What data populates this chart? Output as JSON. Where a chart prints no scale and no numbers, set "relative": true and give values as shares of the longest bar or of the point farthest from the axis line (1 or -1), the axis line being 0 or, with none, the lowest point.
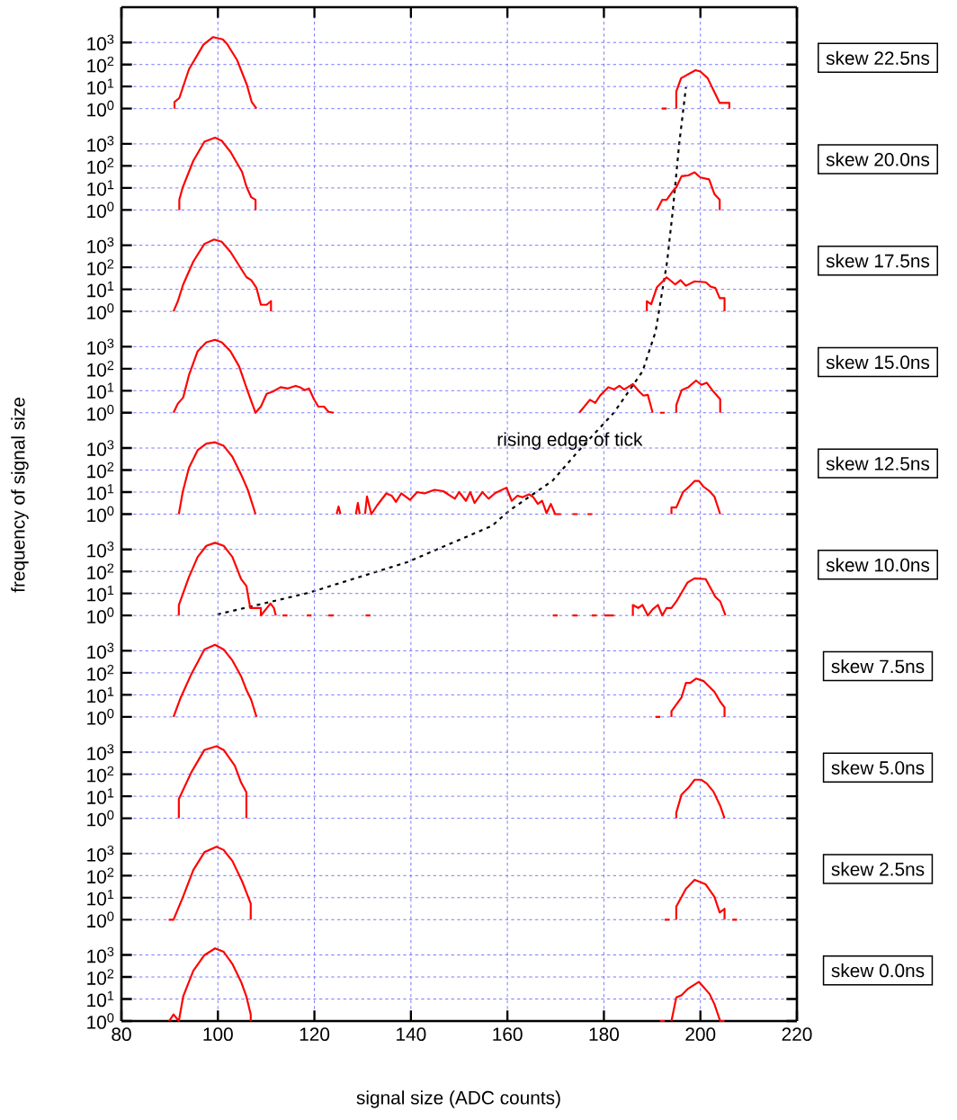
{
  "chart_data": [
    {
      "type": "line",
      "annotations": [
        "skew 22.5ns"
      ],
      "xlim": [
        80,
        220
      ],
      "xticks": [
        80,
        100,
        120,
        140,
        160,
        180,
        200,
        220
      ],
      "ylim": [
        1,
        40000
      ],
      "yticks": [
        {
          "value": 1,
          "label": "10$^{0}$"
        },
        {
          "value": 10,
          "label": "10$^{1}$"
        },
        {
          "value": 100,
          "label": "10$^{2}$"
        },
        {
          "value": 1000,
          "label": "10$^{3}$"
        }
      ],
      "log": true,
      "grid": true,
      "tick_labels": "y",
      "series": [
        {
          "color": "#ff0000",
          "x": [
            91,
            91,
            92,
            94,
            97,
            99,
            101,
            102,
            104,
            106,
            107,
            108,
            null,
            192,
            193,
            null,
            195,
            195,
            196,
            199,
            200,
            201.5,
            204,
            206,
            206
          ],
          "values": [
            1,
            2,
            3,
            61,
            800,
            1760,
            1390,
            800,
            155,
            12,
            2,
            1,
            null,
            1,
            1,
            null,
            1,
            6,
            24,
            55,
            48,
            24,
            1.8,
            1.8,
            1
          ]
        }
      ]
    },
    {
      "type": "line",
      "annotations": [
        "skew 20.0ns"
      ],
      "xlim": [
        80,
        220
      ],
      "xticks": [
        80,
        100,
        120,
        140,
        160,
        180,
        200,
        220
      ],
      "ylim": [
        1,
        40000
      ],
      "yticks": [
        {
          "value": 1,
          "label": "10$^{0}$"
        },
        {
          "value": 10,
          "label": "10$^{1}$"
        },
        {
          "value": 100,
          "label": "10$^{2}$"
        },
        {
          "value": 1000,
          "label": "10$^{3}$"
        }
      ],
      "log": true,
      "grid": true,
      "tick_labels": "y",
      "series": [
        {
          "color": "#ff0000",
          "x": [
            92,
            92,
            92.7,
            94.9,
            97.2,
            99.4,
            100.8,
            102.6,
            105,
            105.9,
            106.9,
            107.8,
            107.8,
            null,
            191,
            192.1,
            193,
            194.3,
            195,
            196.1,
            197.5,
            198.8,
            200,
            201.8,
            202.9,
            204,
            204
          ],
          "values": [
            1,
            2.9,
            10.6,
            170,
            1260,
            1900,
            1380,
            435,
            54,
            11.7,
            3.8,
            2.9,
            1,
            null,
            1,
            2.9,
            2.9,
            7.3,
            10.6,
            34,
            37,
            51,
            30,
            24.5,
            5.3,
            2.9,
            1
          ]
        }
      ]
    },
    {
      "type": "line",
      "annotations": [
        "skew 17.5ns"
      ],
      "xlim": [
        80,
        220
      ],
      "xticks": [
        80,
        100,
        120,
        140,
        160,
        180,
        200,
        220
      ],
      "ylim": [
        1,
        40000
      ],
      "yticks": [
        {
          "value": 1,
          "label": "10$^{0}$"
        },
        {
          "value": 10,
          "label": "10$^{1}$"
        },
        {
          "value": 100,
          "label": "10$^{2}$"
        },
        {
          "value": 1000,
          "label": "10$^{3}$"
        }
      ],
      "log": true,
      "grid": true,
      "tick_labels": "y",
      "series": [
        {
          "color": "#ff0000",
          "x": [
            90.8,
            91.7,
            92.8,
            94.9,
            97.2,
            99.2,
            100.8,
            102.6,
            105.9,
            106.9,
            108,
            108.9,
            110.1,
            111,
            111,
            null,
            188.9,
            188.9,
            189.8,
            191,
            193,
            194.8,
            195.9,
            197,
            198.8,
            201.1,
            202.2,
            203.1,
            204,
            205,
            205
          ],
          "values": [
            1,
            2.9,
            16.6,
            182,
            1150,
            1820,
            1445,
            500,
            36,
            26,
            11.5,
            2,
            2,
            2.9,
            1,
            null,
            1,
            2.9,
            2.1,
            12.6,
            35,
            16.6,
            26,
            14.5,
            23,
            21,
            13,
            11.5,
            4,
            4,
            1
          ]
        }
      ]
    },
    {
      "type": "line",
      "annotations": [
        "skew 15.0ns"
      ],
      "xlim": [
        80,
        220
      ],
      "xticks": [
        80,
        100,
        120,
        140,
        160,
        180,
        200,
        220
      ],
      "ylim": [
        1,
        40000
      ],
      "yticks": [
        {
          "value": 1,
          "label": "10$^{0}$"
        },
        {
          "value": 10,
          "label": "10$^{1}$"
        },
        {
          "value": 100,
          "label": "10$^{2}$"
        },
        {
          "value": 1000,
          "label": "10$^{3}$"
        }
      ],
      "log": true,
      "grid": true,
      "tick_labels": "y",
      "series": [
        {
          "color": "#ff0000",
          "x": [
            90.8,
            91.7,
            92.8,
            94,
            95.8,
            97.6,
            99.4,
            100.8,
            102.6,
            104.4,
            106.2,
            107.8,
            108.9,
            110.1,
            111.4,
            113,
            114.5,
            116.1,
            117,
            118,
            118.9,
            119.9,
            120.8,
            122,
            122.9,
            124,
            null,
            174.9,
            177.1,
            178.2,
            179.2,
            180.9,
            182.1,
            183.2,
            184.2,
            186,
            187.3,
            188.2,
            189.1,
            190.1,
            null,
            191.6,
            192.6,
            null,
            195,
            195,
            196.1,
            197.5,
            199.1,
            200.2,
            201.3,
            202.7,
            204.1,
            204.1
          ],
          "values": [
            1,
            2.6,
            4.9,
            51,
            620,
            1580,
            2030,
            1580,
            620,
            126,
            9.1,
            1,
            1.9,
            7.2,
            9.1,
            14.4,
            12.6,
            16.6,
            14.4,
            10.5,
            12.6,
            4.1,
            1.9,
            1.9,
            1.1,
            1,
            null,
            1,
            3.9,
            2.8,
            6,
            14.4,
            11.5,
            16.6,
            11.5,
            20,
            9.1,
            6,
            6.5,
            1,
            null,
            1,
            1,
            null,
            1,
            2.2,
            10.5,
            14.4,
            29,
            18.5,
            23,
            9.1,
            4.1,
            1
          ]
        }
      ]
    },
    {
      "type": "line",
      "annotations": [
        "skew 12.5ns"
      ],
      "ylabel": "frequency of signal size",
      "xlim": [
        80,
        220
      ],
      "xticks": [
        80,
        100,
        120,
        140,
        160,
        180,
        200,
        220
      ],
      "ylim": [
        1,
        40000
      ],
      "yticks": [
        {
          "value": 1,
          "label": "10$^{0}$"
        },
        {
          "value": 10,
          "label": "10$^{1}$"
        },
        {
          "value": 100,
          "label": "10$^{2}$"
        },
        {
          "value": 1000,
          "label": "10$^{3}$"
        }
      ],
      "log": true,
      "grid": true,
      "tick_labels": "y",
      "series": [
        {
          "color": "#ff0000",
          "x": [
            91.9,
            92.7,
            94,
            95.8,
            97.6,
            99.4,
            101.2,
            103,
            104.8,
            106.2,
            107.8,
            null,
            124.6,
            125,
            125.4,
            null,
            128.6,
            129,
            129.4,
            null,
            130.5,
            130.9,
            131.8,
            133,
            134.9,
            136,
            136.9,
            138,
            139.8,
            141.3,
            142.8,
            144.9,
            146.7,
            149.1,
            150,
            151.4,
            152.3,
            153.2,
            154.8,
            156.1,
            157.5,
            159.8,
            160.9,
            162.1,
            163.1,
            164.5,
            165.4,
            166.3,
            167.2,
            168.1,
            169,
            169.9,
            171.1,
            null,
            173.5,
            174.5,
            null,
            176.6,
            177.6,
            null,
            194,
            194,
            195,
            196.4,
            197.7,
            198.8,
            199.7,
            200.6,
            201.8,
            202.9,
            204.1
          ],
          "values": [
            1,
            10,
            126,
            800,
            1580,
            1820,
            1260,
            400,
            63,
            12.6,
            1,
            null,
            1,
            2.2,
            1,
            null,
            1,
            3.2,
            1,
            null,
            1,
            6.3,
            1,
            2.5,
            8.7,
            6.9,
            3.6,
            8.7,
            4.4,
            10,
            8.7,
            12.6,
            11,
            5,
            10,
            4,
            10,
            3.2,
            10,
            5,
            9.1,
            15.8,
            4,
            6.9,
            5.8,
            7.9,
            5.8,
            2.9,
            4,
            1.1,
            2.9,
            1,
            1,
            null,
            1,
            1,
            null,
            1,
            1,
            null,
            1,
            2,
            2,
            10,
            18,
            32,
            32,
            18,
            11.5,
            6.3,
            1
          ]
        }
      ]
    },
    {
      "type": "line",
      "annotations": [
        "skew 10.0ns"
      ],
      "xlim": [
        80,
        220
      ],
      "xticks": [
        80,
        100,
        120,
        140,
        160,
        180,
        200,
        220
      ],
      "ylim": [
        1,
        40000
      ],
      "yticks": [
        {
          "value": 1,
          "label": "10$^{0}$"
        },
        {
          "value": 10,
          "label": "10$^{1}$"
        },
        {
          "value": 100,
          "label": "10$^{2}$"
        },
        {
          "value": 1000,
          "label": "10$^{3}$"
        }
      ],
      "log": true,
      "grid": true,
      "tick_labels": "y",
      "series": [
        {
          "color": "#ff0000",
          "x": [
            91.9,
            91.9,
            94,
            95.8,
            97.6,
            99.4,
            101.2,
            103,
            104.8,
            105.9,
            106.7,
            108.9,
            108.9,
            110.9,
            111.6,
            112,
            null,
            113.4,
            114.4,
            null,
            118.4,
            119.4,
            null,
            122.9,
            124,
            null,
            130.6,
            131.6,
            null,
            169.4,
            170.4,
            null,
            173.5,
            174.5,
            null,
            177.5,
            178.5,
            null,
            180.1,
            182.1,
            null,
            186,
            186,
            187.1,
            188,
            189.1,
            190.1,
            191.2,
            192.1,
            193,
            194,
            195.2,
            197.3,
            198.8,
            201.1,
            203.1,
            204.1,
            205.2
          ],
          "values": [
            1,
            3,
            56,
            457,
            1450,
            2000,
            1450,
            457,
            45,
            22,
            2.2,
            2.2,
            1,
            3.5,
            2.2,
            1,
            null,
            1,
            1,
            null,
            1,
            1,
            null,
            1,
            1,
            null,
            1,
            1,
            null,
            1,
            1,
            null,
            1,
            1,
            null,
            1,
            1,
            null,
            1,
            1,
            null,
            1,
            3,
            2.2,
            3,
            1,
            1.9,
            3,
            1,
            2.2,
            2.2,
            5,
            31,
            49,
            45,
            7,
            4.4,
            1
          ]
        }
      ]
    },
    {
      "type": "line",
      "annotations": [
        "skew 7.5ns"
      ],
      "xlim": [
        80,
        220
      ],
      "xticks": [
        80,
        100,
        120,
        140,
        160,
        180,
        200,
        220
      ],
      "ylim": [
        1,
        40000
      ],
      "yticks": [
        {
          "value": 1,
          "label": "10$^{0}$"
        },
        {
          "value": 10,
          "label": "10$^{1}$"
        },
        {
          "value": 100,
          "label": "10$^{2}$"
        },
        {
          "value": 1000,
          "label": "10$^{3}$"
        }
      ],
      "log": true,
      "grid": true,
      "tick_labels": "y",
      "series": [
        {
          "color": "#ff0000",
          "x": [
            90.8,
            92.2,
            94.5,
            97.2,
            99.4,
            101.2,
            103,
            104.8,
            105.9,
            106.9,
            108,
            null,
            190.7,
            191.7,
            null,
            194,
            194,
            196.1,
            197,
            197.9,
            199.1,
            200.7,
            202.9,
            204.1,
            205,
            205
          ],
          "values": [
            1,
            6.8,
            89,
            1150,
            1860,
            1150,
            365,
            70,
            17,
            5.9,
            1,
            null,
            1,
            1,
            null,
            1,
            1.8,
            7.8,
            35,
            35,
            55,
            42,
            13.7,
            4.9,
            2.7,
            1
          ]
        }
      ]
    },
    {
      "type": "line",
      "annotations": [
        "skew 5.0ns"
      ],
      "xlim": [
        80,
        220
      ],
      "xticks": [
        80,
        100,
        120,
        140,
        160,
        180,
        200,
        220
      ],
      "ylim": [
        1,
        40000
      ],
      "yticks": [
        {
          "value": 1,
          "label": "10$^{0}$"
        },
        {
          "value": 10,
          "label": "10$^{1}$"
        },
        {
          "value": 100,
          "label": "10$^{2}$"
        },
        {
          "value": 1000,
          "label": "10$^{3}$"
        }
      ],
      "log": true,
      "grid": true,
      "tick_labels": "y",
      "series": [
        {
          "color": "#ff0000",
          "x": [
            91.9,
            91.9,
            94.5,
            97.2,
            99.7,
            101.2,
            103.5,
            104.8,
            105.9,
            105.9,
            null,
            195,
            195,
            196.1,
            197.5,
            198.8,
            200.2,
            201.3,
            202.7,
            204.1,
            205
          ],
          "values": [
            1,
            7.4,
            123,
            1260,
            1860,
            1260,
            245,
            42,
            15,
            1,
            null,
            1,
            1.8,
            12,
            24,
            56,
            56,
            38,
            16.4,
            3.7,
            1
          ]
        }
      ]
    },
    {
      "type": "line",
      "annotations": [
        "skew 2.5ns"
      ],
      "xlim": [
        80,
        220
      ],
      "xticks": [
        80,
        100,
        120,
        140,
        160,
        180,
        200,
        220
      ],
      "ylim": [
        1,
        40000
      ],
      "yticks": [
        {
          "value": 1,
          "label": "10$^{0}$"
        },
        {
          "value": 10,
          "label": "10$^{1}$"
        },
        {
          "value": 100,
          "label": "10$^{2}$"
        },
        {
          "value": 1000,
          "label": "10$^{3}$"
        }
      ],
      "log": true,
      "grid": true,
      "tick_labels": "y",
      "series": [
        {
          "color": "#ff0000",
          "x": [
            89.8,
            90.8,
            92.7,
            94.9,
            97.2,
            99.7,
            101.2,
            103,
            105,
            105.9,
            106.8,
            106.8,
            null,
            192.6,
            193.6,
            null,
            195,
            195,
            197,
            198.8,
            201.1,
            202.9,
            204,
            205,
            205,
            null,
            206.6,
            207.6
          ],
          "values": [
            1,
            1,
            10,
            178,
            1150,
            2040,
            1450,
            457,
            56,
            17.4,
            5.4,
            1,
            null,
            1,
            1,
            null,
            1,
            3.9,
            25,
            65,
            40,
            11,
            2.1,
            3.1,
            1,
            null,
            1,
            1
          ]
        }
      ]
    },
    {
      "type": "line",
      "annotations": [
        "skew 0.0ns"
      ],
      "xlabel": "signal size (ADC counts)",
      "xlim": [
        80,
        220
      ],
      "xticks": [
        80,
        100,
        120,
        140,
        160,
        180,
        200,
        220
      ],
      "ylim": [
        1,
        40000
      ],
      "yticks": [
        {
          "value": 1,
          "label": "10$^{0}$"
        },
        {
          "value": 10,
          "label": "10$^{1}$"
        },
        {
          "value": 100,
          "label": "10$^{2}$"
        },
        {
          "value": 1000,
          "label": "10$^{3}$"
        }
      ],
      "log": true,
      "grid": true,
      "series": [
        {
          "color": "#ff0000",
          "x": [
            89.9,
            90.8,
            91.9,
            92.8,
            94.9,
            97.2,
            99.4,
            101.2,
            103,
            104.8,
            105.9,
            106.8,
            106.8,
            null,
            191.6,
            192.6,
            null,
            194,
            195,
            196.1,
            197.5,
            199.7,
            201.9,
            202.9,
            204.1,
            205
          ],
          "values": [
            1,
            2,
            1,
            13,
            190,
            980,
            1990,
            1380,
            390,
            60,
            13,
            2,
            1,
            null,
            1,
            1,
            null,
            1,
            11.8,
            15,
            30,
            60,
            17,
            5.9,
            1,
            1
          ]
        }
      ]
    },
    {
      "type": "line",
      "relative": true,
      "xlim": [
        80,
        220
      ],
      "tick_labels": false,
      "line_style": "dotted",
      "annotations": [
        "rising edge of tick"
      ],
      "series": [
        {
          "color": "#000000",
          "x": [
            99.9,
            118.8,
            139.2,
            156.8,
            160.4,
            169.4,
            174.9,
            182.1,
            188,
            190.7,
            193.1,
            194.3,
            195.6,
            197
          ],
          "values": [
            0,
            0.041,
            0.099,
            0.168,
            0.197,
            0.254,
            0.312,
            0.383,
            0.461,
            0.536,
            0.669,
            0.768,
            0.892,
            1
          ]
        }
      ]
    }
  ]
}
